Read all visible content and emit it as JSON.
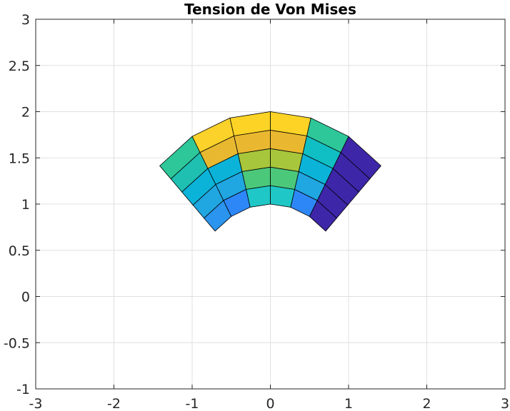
{
  "chart_data": {
    "type": "heatmap",
    "title": "Tension de Von Mises",
    "xlabel": "",
    "ylabel": "",
    "xlim": [
      -3,
      3
    ],
    "ylim": [
      -1,
      3
    ],
    "xticks": [
      -3,
      -2,
      -1,
      0,
      1,
      2,
      3
    ],
    "yticks": [
      -1,
      -0.5,
      0,
      0.5,
      1,
      1.5,
      2,
      2.5,
      3
    ],
    "xtick_labels": [
      "-3",
      "-2",
      "-1",
      "0",
      "1",
      "2",
      "3"
    ],
    "ytick_labels": [
      "-1",
      "-0.5",
      "0",
      "0.5",
      "1",
      "1.5",
      "2",
      "2.5",
      "3"
    ],
    "grid": true,
    "mesh": {
      "description": "Annular sector mesh, inner radius 1, outer radius 2, angles from 45 deg to 135 deg",
      "inner_radius": 1,
      "outer_radius": 2,
      "theta_start_deg": 45,
      "theta_end_deg": 135,
      "radial_divisions": 5,
      "angular_divisions": 6,
      "cell_colors": [
        [
          "#3e26a8",
          "#2e87f7",
          "#1fc8c6",
          "#1fc8c6",
          "#2e87f7",
          "#2a94ee"
        ],
        [
          "#3e26a8",
          "#20a6e0",
          "#4cc87a",
          "#4cc87a",
          "#20a6e0",
          "#20a6e0"
        ],
        [
          "#3e26a8",
          "#0cb3d9",
          "#a7c63b",
          "#a7c63b",
          "#0cb3d9",
          "#0cb3d9"
        ],
        [
          "#3e26a8",
          "#10bfc4",
          "#eab830",
          "#eab830",
          "#e8b930",
          "#1fbfb2"
        ],
        [
          "#3e26a8",
          "#2ec799",
          "#fdd325",
          "#fdd325",
          "#fad22a",
          "#2ec799"
        ]
      ]
    },
    "colors": {
      "axis": "#262626",
      "grid": "#e0e0e0",
      "edge": "#000000"
    }
  }
}
